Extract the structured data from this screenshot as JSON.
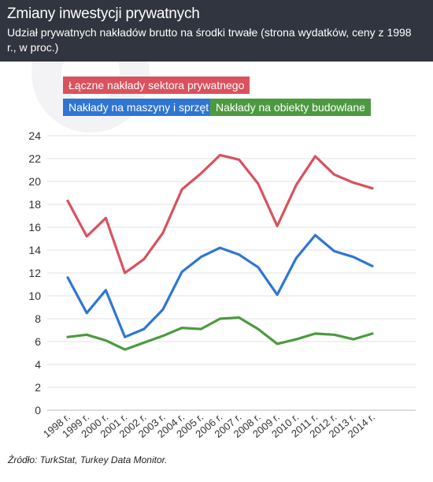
{
  "header": {
    "title": "Zmiany inwestycji prywatnych",
    "subtitle": "Udział prywatnych nakładów brutto na środki trwałe (strona wydatków, ceny z 1998 r., w proc.)"
  },
  "source": "Źródło: TurkStat, Turkey Data Monitor.",
  "colors": {
    "header_bg": "#31353f",
    "red": "#d9525d",
    "blue": "#2f76d3",
    "green": "#4c9a3f"
  },
  "chart_data": {
    "type": "line",
    "categories": [
      "1998 r.",
      "1999 r.",
      "2000 r.",
      "2001 r.",
      "2002 r.",
      "2003 r.",
      "2004 r.",
      "2005 r.",
      "2006 r.",
      "2007 r.",
      "2008 r.",
      "2009 r.",
      "2010 r.",
      "2011 r.",
      "2012 r.",
      "2013 r.",
      "2014 r."
    ],
    "ylim": [
      0,
      24
    ],
    "yticks": [
      0,
      2,
      4,
      6,
      8,
      10,
      12,
      14,
      16,
      18,
      20,
      22,
      24
    ],
    "grid": true,
    "legend_position": "top-left",
    "series": [
      {
        "name": "Łączne nakłady sektora prywatnego",
        "color": "#d9525d",
        "values": [
          18.3,
          15.2,
          16.8,
          12.0,
          13.2,
          15.5,
          19.3,
          20.7,
          22.3,
          21.9,
          19.8,
          16.1,
          19.7,
          22.2,
          20.6,
          19.9,
          19.4
        ]
      },
      {
        "name": "Nakłady na maszyny i sprzęt",
        "color": "#2f76d3",
        "values": [
          11.6,
          8.5,
          10.5,
          6.4,
          7.1,
          8.8,
          12.1,
          13.4,
          14.2,
          13.6,
          12.5,
          10.1,
          13.3,
          15.3,
          13.9,
          13.4,
          12.6
        ]
      },
      {
        "name": "Nakłady na obiekty budowlane",
        "color": "#4c9a3f",
        "values": [
          6.4,
          6.6,
          6.1,
          5.3,
          5.9,
          6.5,
          7.2,
          7.1,
          8.0,
          8.1,
          7.1,
          5.8,
          6.2,
          6.7,
          6.6,
          6.2,
          6.7
        ]
      }
    ]
  }
}
